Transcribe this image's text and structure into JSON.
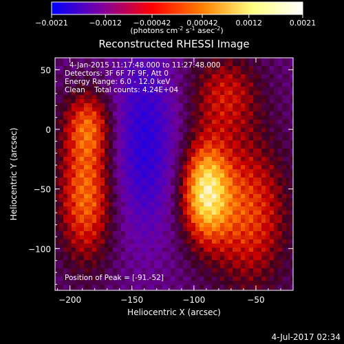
{
  "chart_data": {
    "type": "heatmap",
    "title": "Reconstructed RHESSI Image",
    "colorbar": {
      "ticks": [
        "-0.0021",
        "-0.0012",
        "-0.00042",
        "0.00042",
        "0.0012",
        "0.0021"
      ],
      "range": [
        -0.0021,
        0.0021
      ],
      "units_prefix": "(photons cm",
      "units_exp1": "-2",
      "units_mid": " s",
      "units_exp2": "-1",
      "units_mid2": " asec",
      "units_exp3": "-2",
      "units_suffix": ")",
      "colors": [
        "#0000ff",
        "#8000a0",
        "#ff0000",
        "#ff8000",
        "#ffff80",
        "#ffffff"
      ]
    },
    "annotations": [
      "4-Jan-2015 11:17:48.000 to 11:27:48.000",
      "Detectors: 3F 6F 7F 9F, Att 0",
      "Energy Range: 6.0 - 12.0 keV",
      "Clean    Total counts: 4.24E+04"
    ],
    "peak_label": "Position of Peak = [-91.-52]",
    "xlabel": "Heliocentric X (arcsec)",
    "ylabel": "Heliocentric Y (arcsec)",
    "xlim": [
      -212,
      -20
    ],
    "ylim": [
      -135,
      60
    ],
    "xticks": [
      -200,
      -150,
      -100,
      -50
    ],
    "yticks": [
      50,
      0,
      -50,
      -100
    ],
    "xtick_labels": [
      "−200",
      "−150",
      "−100",
      "−50"
    ],
    "ytick_labels": [
      "50",
      "0",
      "−50",
      "−100"
    ],
    "sources": [
      {
        "x": -91,
        "y": -52,
        "peak": 1.0,
        "sx": 14,
        "sy": 30
      },
      {
        "x": -187,
        "y": -55,
        "peak": 0.72,
        "sx": 16,
        "sy": 40
      },
      {
        "x": -55,
        "y": -70,
        "peak": 0.6,
        "sx": 22,
        "sy": 45
      },
      {
        "x": -185,
        "y": 5,
        "peak": 0.5,
        "sx": 14,
        "sy": 20
      },
      {
        "x": -75,
        "y": 30,
        "peak": 0.45,
        "sx": 20,
        "sy": 25
      }
    ],
    "negative_region": {
      "x": -140,
      "y": -10,
      "depth": 0.55,
      "sx": 18,
      "sy": 55
    }
  },
  "footer": {
    "date": "4-Jul-2017 02:34"
  }
}
